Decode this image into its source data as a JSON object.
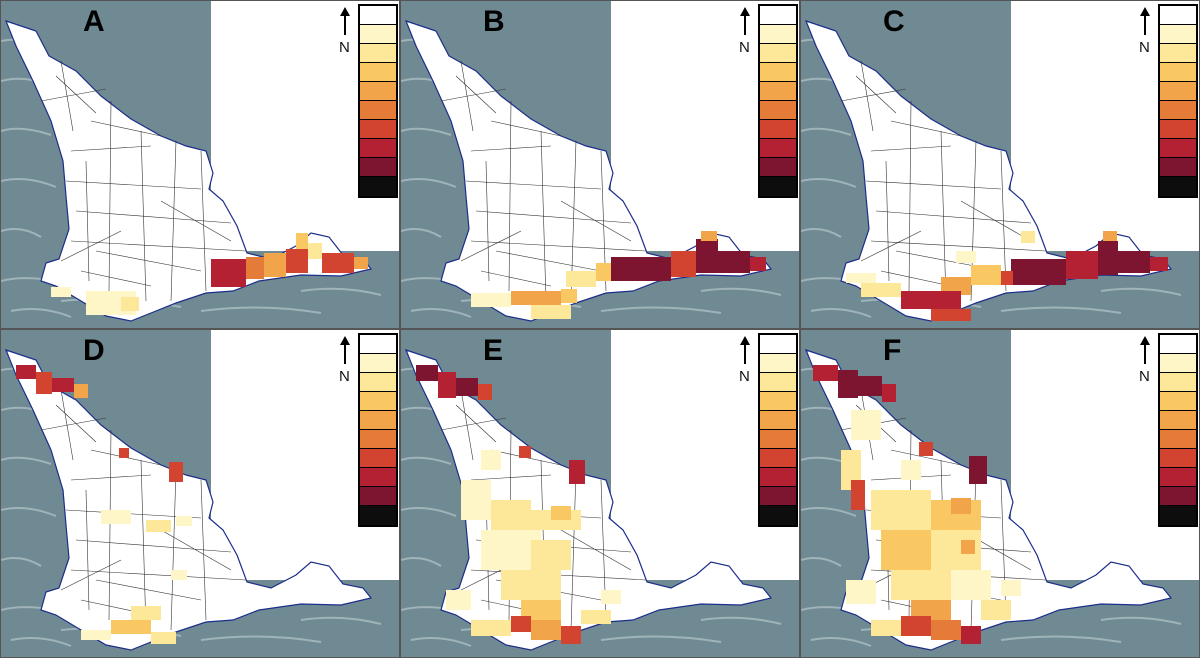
{
  "figure": {
    "north_label": "N",
    "legend_colors": [
      "#ffffff",
      "#fff6c8",
      "#fde89a",
      "#f9c863",
      "#f1a44a",
      "#e57b38",
      "#d2442f",
      "#b42132",
      "#7d1430",
      "#0d0d0d"
    ],
    "panels": [
      {
        "letter": "A",
        "label": "Panel A"
      },
      {
        "letter": "B",
        "label": "Panel B"
      },
      {
        "letter": "C",
        "label": "Panel C"
      },
      {
        "letter": "D",
        "label": "Panel D"
      },
      {
        "letter": "E",
        "label": "Panel E"
      },
      {
        "letter": "F",
        "label": "Panel F"
      }
    ]
  }
}
